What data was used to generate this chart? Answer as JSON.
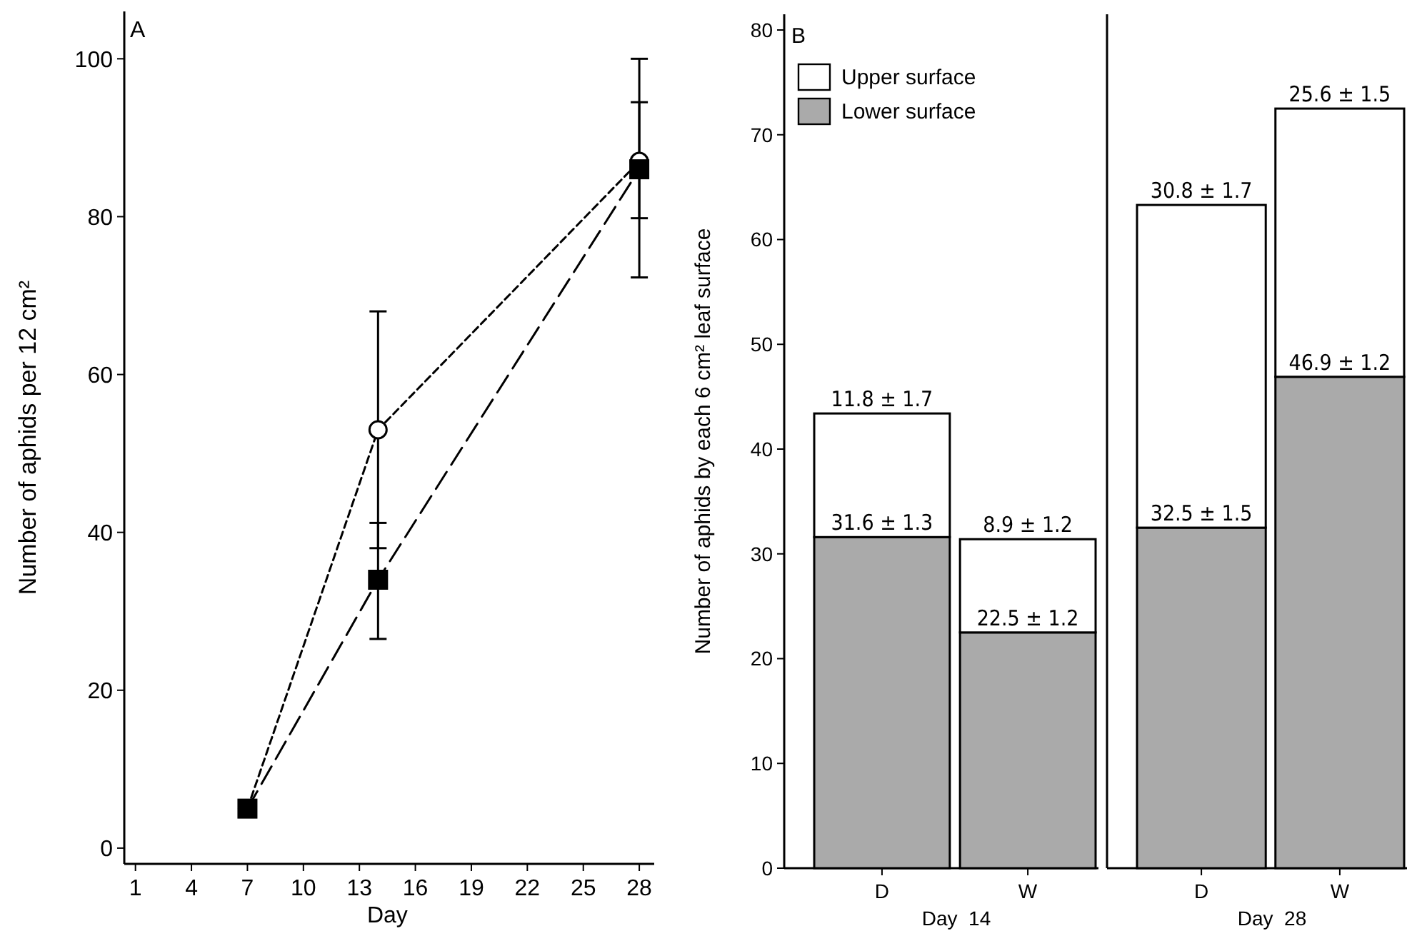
{
  "chart_data": [
    {
      "type": "line",
      "title": "A",
      "xlabel": "Day",
      "ylabel": "Number of aphids per 12 cm²",
      "x": [
        7,
        14,
        28
      ],
      "xlim": [
        0.4,
        28.8
      ],
      "xticks": [
        1,
        4,
        7,
        10,
        13,
        16,
        19,
        22,
        25,
        28
      ],
      "ylim": [
        -2,
        106
      ],
      "yticks": [
        0,
        20,
        40,
        60,
        80,
        100
      ],
      "grid": false,
      "legend": false,
      "series": [
        {
          "color": "#000000",
          "marker": "square",
          "line_style": "dashed",
          "values": [
            5,
            34,
            86
          ],
          "errors": [
            null,
            [
              26.5,
              41.2
            ],
            [
              72.3,
              100
            ]
          ]
        },
        {
          "color": "#000000",
          "marker": "circle",
          "line_style": "dashed",
          "values": [
            5,
            53,
            87
          ],
          "errors": [
            null,
            15,
            [
              79.8,
              94.5
            ]
          ]
        }
      ]
    },
    {
      "type": "bar",
      "stacked": true,
      "title": "B",
      "categories": [
        "D",
        "W"
      ],
      "xlabel": "Day  14",
      "ylabel": "Number of aphids by each 6 cm² leaf surface",
      "ylim": [
        0,
        81.5
      ],
      "yticks": [
        0,
        10,
        20,
        30,
        40,
        50,
        60,
        70,
        80
      ],
      "grid": false,
      "legend": "top left",
      "series": [
        {
          "name": "Lower surface",
          "color": "#aaaaaa",
          "values": [
            31.6,
            22.5
          ],
          "value_labels": [
            "31.6 ± 1.3",
            "22.5 ± 1.2"
          ]
        },
        {
          "name": "Upper surface",
          "color": "#ffffff",
          "values": [
            11.8,
            8.9
          ],
          "value_labels": [
            "11.8 ± 1.7",
            "8.9 ± 1.2"
          ]
        }
      ]
    },
    {
      "type": "bar",
      "stacked": true,
      "categories": [
        "D",
        "W"
      ],
      "xlabel": "Day  28",
      "ylim": [
        0,
        81.5
      ],
      "tick_labels": "x",
      "grid": false,
      "legend": false,
      "series": [
        {
          "color": "#aaaaaa",
          "values": [
            32.5,
            46.9
          ],
          "value_labels": [
            "32.5 ± 1.5",
            "46.9 ± 1.2"
          ]
        },
        {
          "color": "#ffffff",
          "values": [
            30.8,
            25.6
          ],
          "value_labels": [
            "30.8 ± 1.7",
            "25.6 ± 1.5"
          ]
        }
      ]
    }
  ]
}
